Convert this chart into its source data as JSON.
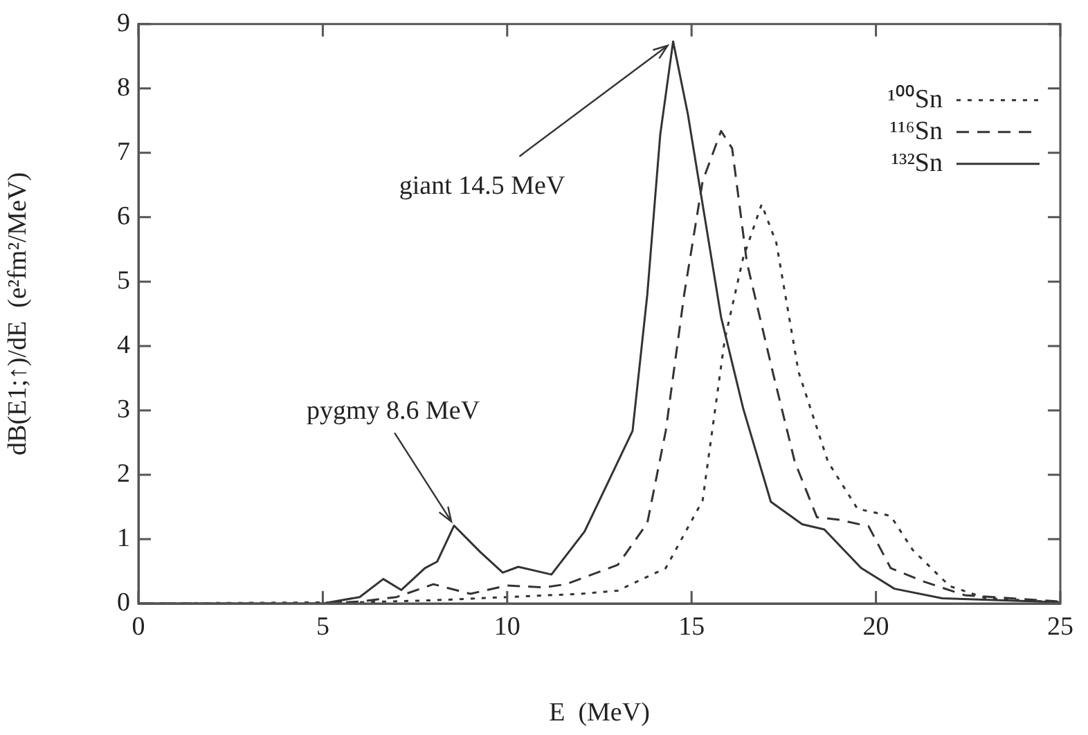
{
  "chart_data": {
    "type": "line",
    "xlabel": "E  (MeV)",
    "ylabel": "dB(E1;↑)/dE  (e²fm²/MeV)",
    "xlim": [
      0,
      25
    ],
    "ylim": [
      0,
      9
    ],
    "xticks": [
      0,
      5,
      10,
      15,
      20,
      25
    ],
    "yticks": [
      0,
      1,
      2,
      3,
      4,
      5,
      6,
      7,
      8,
      9
    ],
    "grid": false,
    "legend": "top right",
    "marker": "none",
    "annotations": [
      {
        "text": "giant 14.5 MeV",
        "x": 14.5,
        "y": 8.73
      },
      {
        "text": "pygmy 8.6 MeV",
        "x": 8.56,
        "y": 1.21
      }
    ],
    "series": [
      {
        "name": "¹⁰⁰Sn",
        "color": "#333333",
        "line_style": "dotted",
        "x": [
          0,
          6,
          8,
          10,
          12,
          13,
          14.3,
          15.3,
          15.9,
          16.4,
          16.9,
          17.3,
          17.9,
          18.7,
          19.5,
          20.4,
          21,
          22,
          23,
          25
        ],
        "values": [
          0,
          0.02,
          0.05,
          0.1,
          0.15,
          0.2,
          0.55,
          1.6,
          4.1,
          5.37,
          6.2,
          5.6,
          3.6,
          2.2,
          1.47,
          1.36,
          0.83,
          0.27,
          0.08,
          0.02
        ]
      },
      {
        "name": "¹¹⁶Sn",
        "color": "#333333",
        "line_style": "dashed",
        "x": [
          0,
          5,
          6,
          7,
          8,
          9,
          10,
          11,
          11.6,
          13,
          13.8,
          14.3,
          14.8,
          15.3,
          15.8,
          16.1,
          16.5,
          17.2,
          17.8,
          18.4,
          19,
          19.8,
          20.4,
          21.3,
          22.4,
          25
        ],
        "values": [
          0,
          0,
          0.03,
          0.1,
          0.3,
          0.15,
          0.28,
          0.25,
          0.3,
          0.6,
          1.25,
          2.68,
          4.8,
          6.56,
          7.34,
          7.07,
          5.3,
          3.6,
          2.2,
          1.34,
          1.3,
          1.2,
          0.55,
          0.34,
          0.13,
          0.03
        ]
      },
      {
        "name": "¹³²Sn",
        "color": "#333333",
        "line_style": "solid",
        "x": [
          0,
          5,
          6,
          6.64,
          7.13,
          7.77,
          8.1,
          8.56,
          9.27,
          9.88,
          10.3,
          11.2,
          12.1,
          13.4,
          13.8,
          14.15,
          14.5,
          14.9,
          15.3,
          15.8,
          16.4,
          17.15,
          18,
          18.6,
          19.6,
          20.5,
          21.8,
          25
        ],
        "values": [
          0,
          0,
          0.1,
          0.38,
          0.21,
          0.55,
          0.65,
          1.21,
          0.8,
          0.48,
          0.57,
          0.45,
          1.12,
          2.68,
          4.8,
          7.28,
          8.73,
          7.6,
          6.2,
          4.45,
          3.03,
          1.58,
          1.23,
          1.15,
          0.55,
          0.23,
          0.08,
          0.02
        ]
      }
    ]
  }
}
